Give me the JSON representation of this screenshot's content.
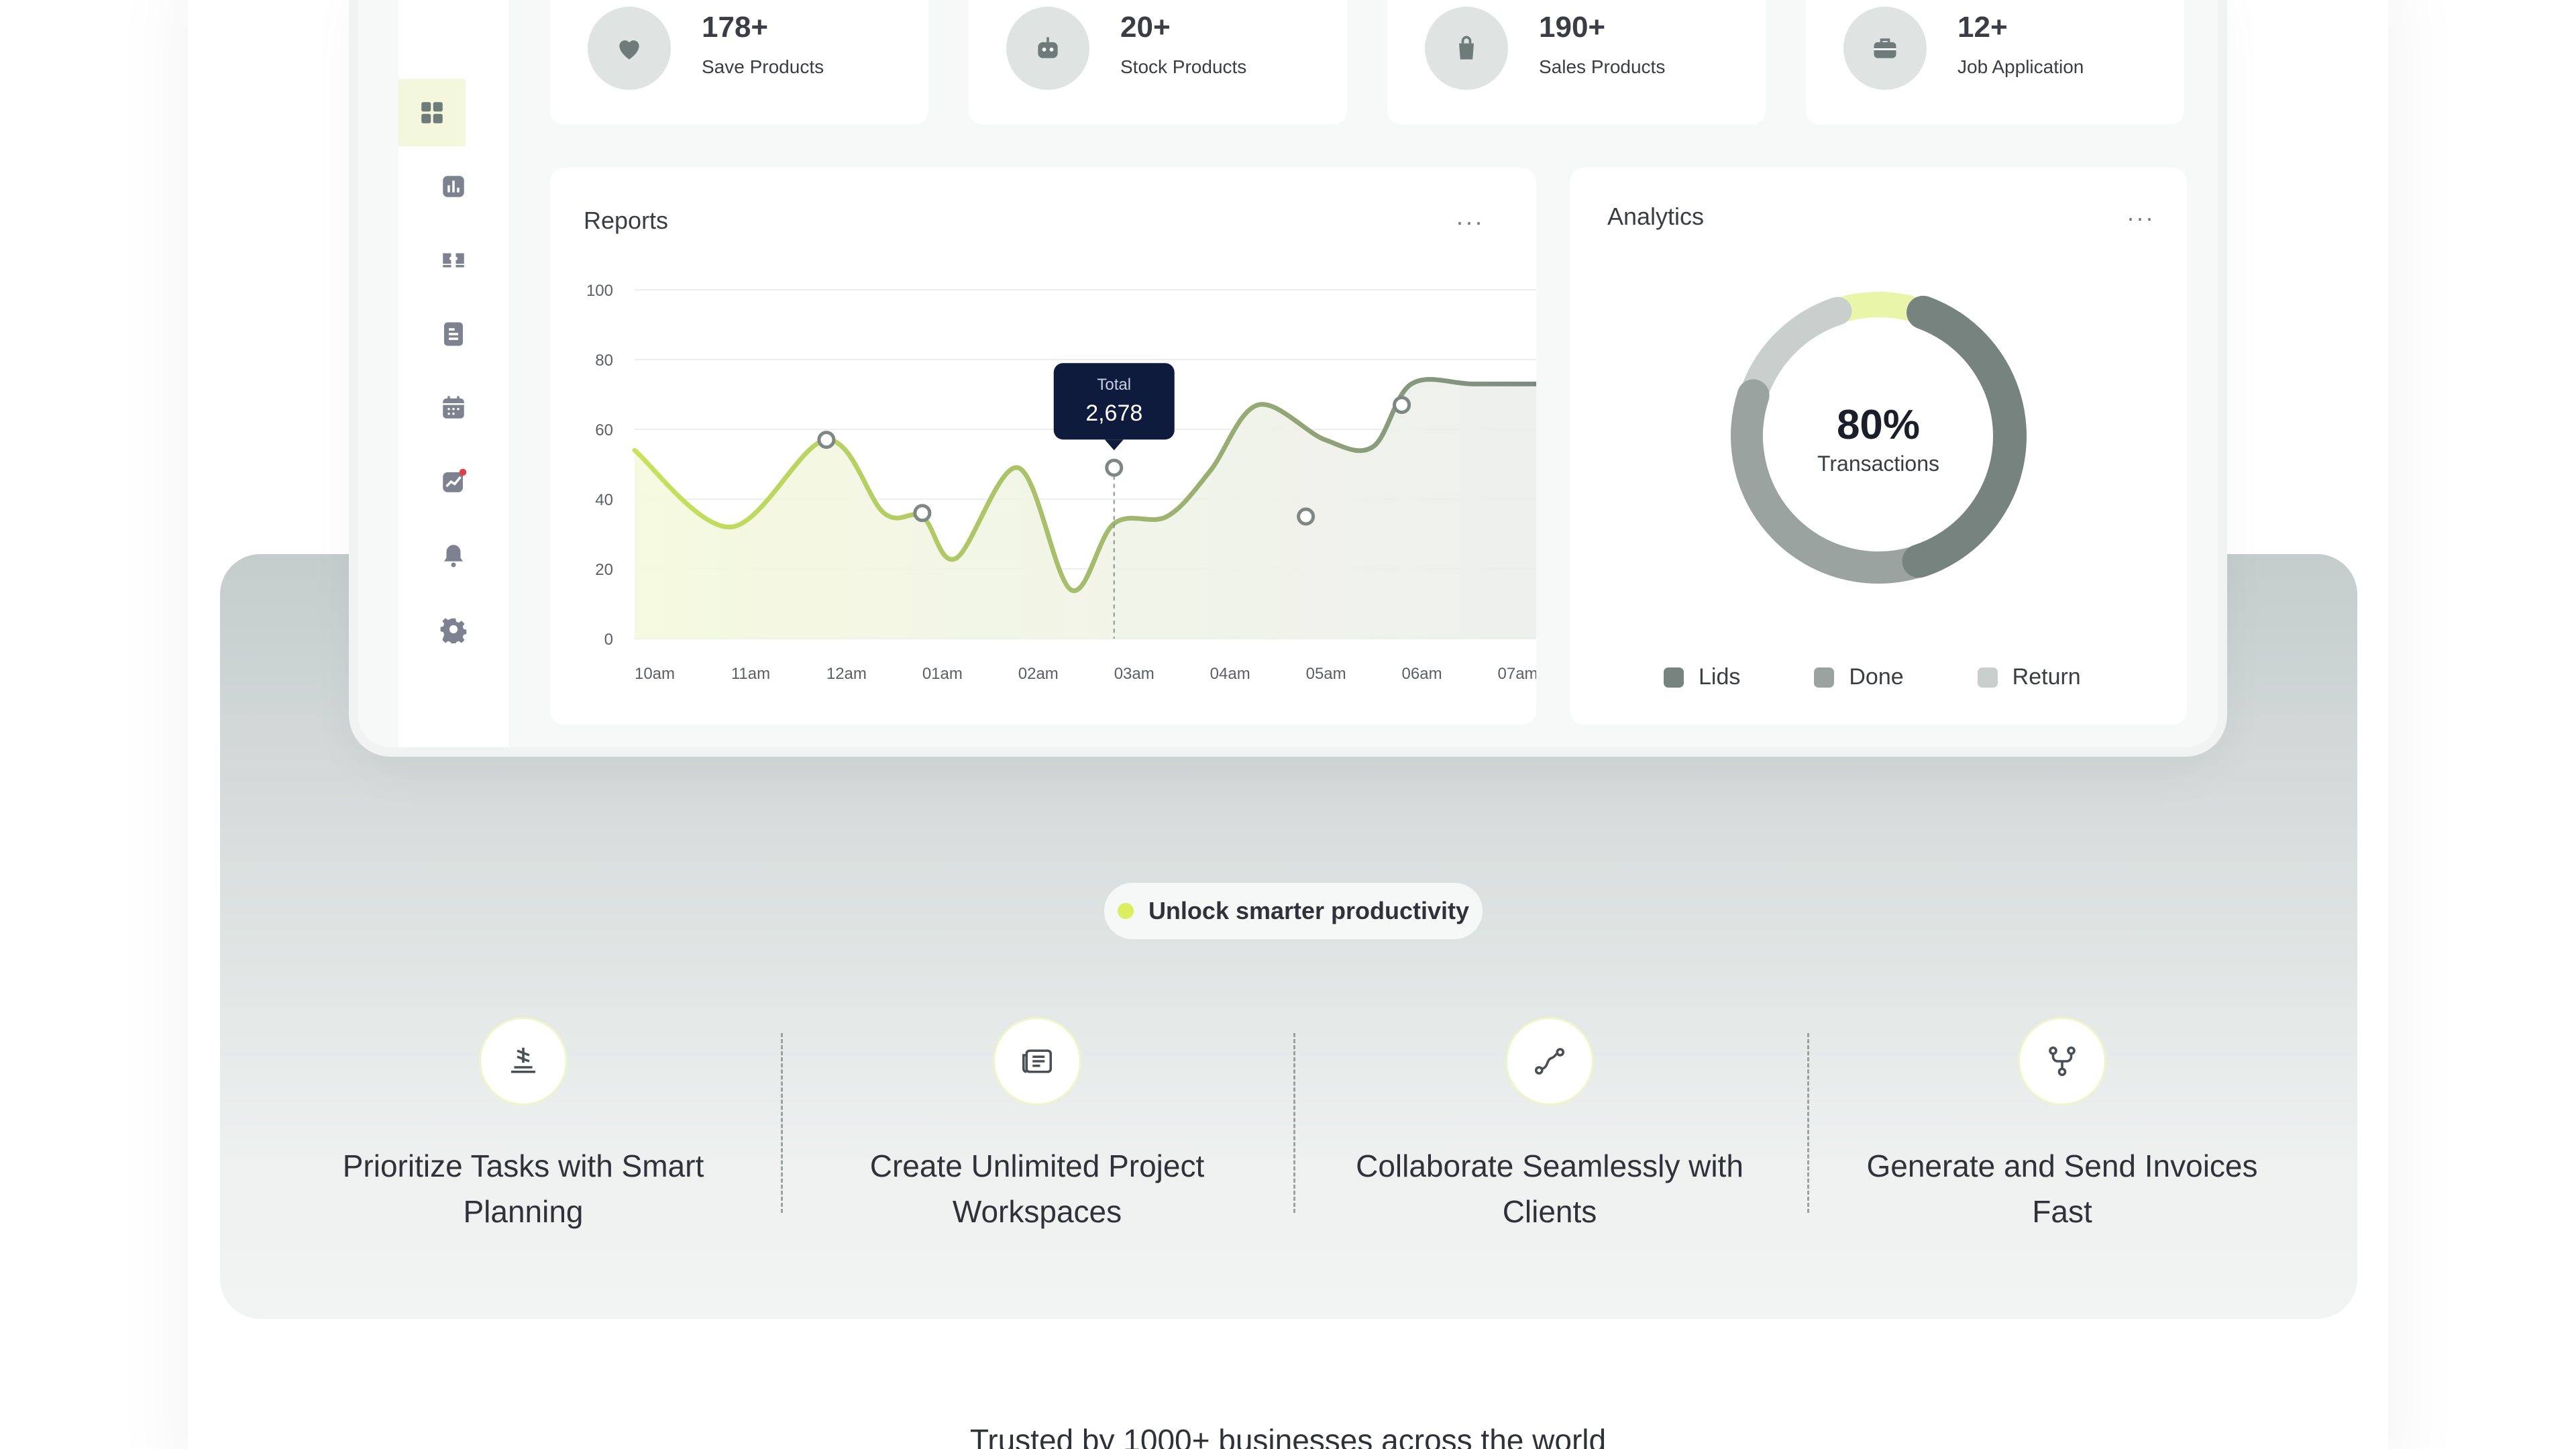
{
  "stats": [
    {
      "value": "178+",
      "label": "Save Products",
      "icon": "heart-icon"
    },
    {
      "value": "20+",
      "label": "Stock Products",
      "icon": "robot-icon"
    },
    {
      "value": "190+",
      "label": "Sales Products",
      "icon": "bag-icon"
    },
    {
      "value": "12+",
      "label": "Job Application",
      "icon": "briefcase-icon"
    }
  ],
  "sidebar": {
    "items": [
      "dashboard-icon",
      "bar-chart-icon",
      "ticket-icon",
      "document-icon",
      "calendar-icon",
      "trend-icon",
      "bell-icon",
      "gear-icon"
    ]
  },
  "reports": {
    "title": "Reports",
    "menu": "···",
    "tooltip": {
      "label": "Total",
      "value": "2,678"
    }
  },
  "analytics": {
    "title": "Analytics",
    "menu": "···",
    "center_value": "80%",
    "center_label": "Transactions",
    "legend": [
      {
        "label": "Lids",
        "color": "#76837f"
      },
      {
        "label": "Done",
        "color": "#9ba3a0"
      },
      {
        "label": "Return",
        "color": "#c8cfcd"
      }
    ]
  },
  "colors": {
    "accent": "#d9ef5f",
    "line_start": "#c8e25a",
    "line_end": "#7a8a84",
    "dark_tooltip": "#0f1b3d"
  },
  "chart_data": [
    {
      "type": "line",
      "title": "Reports",
      "xlabel": "",
      "ylabel": "",
      "categories": [
        "10am",
        "11am",
        "12am",
        "01am",
        "02am",
        "03am",
        "04am",
        "05am",
        "06am",
        "07am"
      ],
      "x": [
        0,
        1,
        2,
        2.6,
        3,
        3.35,
        4,
        4.55,
        5,
        5.55,
        6,
        6.5,
        7.2,
        7.7,
        8.1,
        8.75,
        9.5
      ],
      "y": [
        54,
        32,
        57,
        36,
        35,
        23,
        49,
        14,
        33,
        35,
        48,
        67,
        57,
        55,
        73,
        73,
        73
      ],
      "markers": [
        {
          "x": "12am",
          "y": 57
        },
        {
          "x": "01am",
          "y": 36
        },
        {
          "x": "03am",
          "y": 49
        },
        {
          "x": "05am",
          "y": 35
        },
        {
          "x": "06am",
          "y": 67
        }
      ],
      "highlight": {
        "x": "03am",
        "label": "Total",
        "value": "2,678"
      },
      "yticks": [
        0,
        20,
        40,
        60,
        80,
        100
      ],
      "ylim": [
        0,
        100
      ],
      "grid": true
    },
    {
      "type": "pie",
      "title": "Analytics",
      "center_value": "80%",
      "center_label": "Transactions",
      "series": [
        {
          "name": "Lids",
          "value": 40
        },
        {
          "name": "Done",
          "value": 35
        },
        {
          "name": "Return",
          "value": 15
        },
        {
          "name": "",
          "value": 10
        }
      ]
    }
  ],
  "hero": {
    "pill": "Unlock smarter productivity",
    "features": [
      {
        "title": "Prioritize Tasks with Smart Planning",
        "icon": "stack-icon"
      },
      {
        "title": "Create Unlimited Project Workspaces",
        "icon": "newspaper-icon"
      },
      {
        "title": "Collaborate Seamlessly with Clients",
        "icon": "route-icon"
      },
      {
        "title": "Generate and Send Invoices Fast",
        "icon": "branch-icon"
      }
    ]
  },
  "trusted": "Trusted by 1000+ businesses across the world"
}
